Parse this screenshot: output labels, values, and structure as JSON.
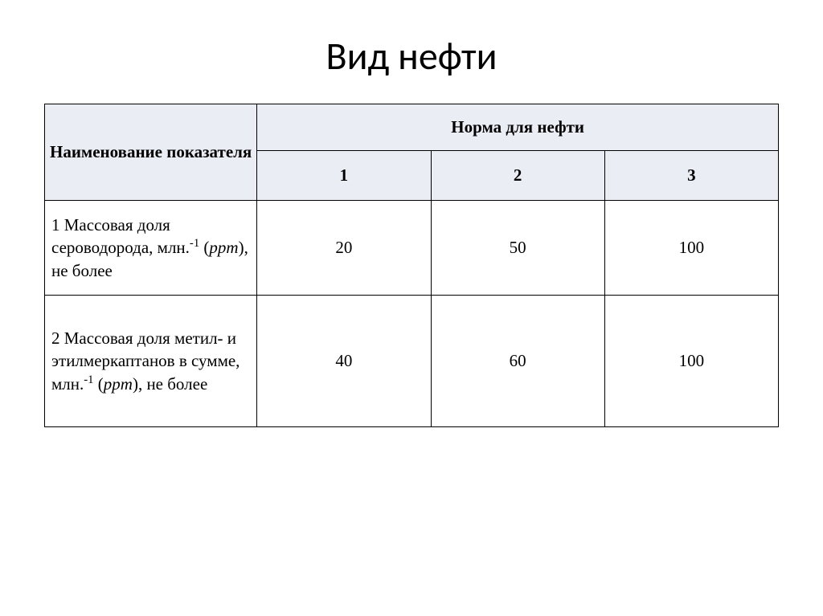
{
  "title": "Вид нефти",
  "table": {
    "header_bg": "#eaeef4",
    "border_color": "#000000",
    "font_family": "Times New Roman",
    "header_font_size_pt": 16,
    "cell_font_size_pt": 16,
    "columns": {
      "indicator_label": "Наименование показателя",
      "group_label": "Норма для нефти",
      "variants": [
        "1",
        "2",
        "3"
      ]
    },
    "rows": [
      {
        "label_prefix": "1 Массовая доля сероводорода, млн.",
        "label_sup": "-1",
        "label_paren_italic": "ppm",
        "label_suffix": ", не более",
        "values": [
          "20",
          "50",
          "100"
        ]
      },
      {
        "label_prefix": "2 Массовая доля метил- и этилмеркаптанов в сумме, млн.",
        "label_sup": "-1",
        "label_paren_italic": "ppm",
        "label_suffix": ", не более",
        "values": [
          "40",
          "60",
          "100"
        ]
      }
    ]
  }
}
